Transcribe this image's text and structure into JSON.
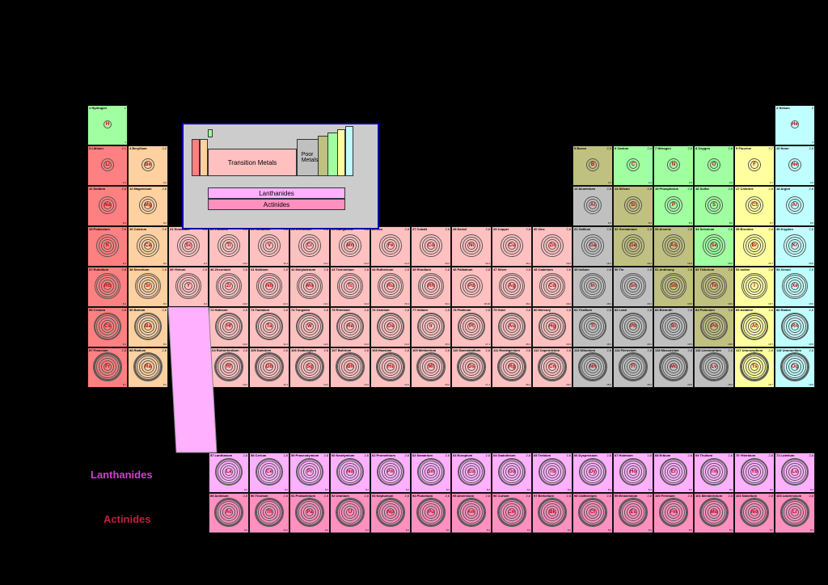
{
  "colors": {
    "alkali": "#ff8080",
    "alkaline": "#ffd0a0",
    "transition": "#ffc0c0",
    "poor": "#c0c0c0",
    "metalloid": "#c0c080",
    "nonmetal": "#a0ffa0",
    "halogen": "#ffffa0",
    "noble": "#c0ffff",
    "lanthanide": "#ffb0ff",
    "actinide": "#ff90c0",
    "legend_bg": "#cccccc",
    "legend_border": "#0000aa",
    "background": "#000000"
  },
  "labels": {
    "lanthanides": "Lanthanides",
    "actinides": "Actinides"
  },
  "legend": {
    "transition": "Transition Metals",
    "poor": "Poor\nMetals",
    "lanthanides": "Lanthanides",
    "actinides": "Actinides"
  },
  "rows": [
    [
      {
        "n": 1,
        "s": "H",
        "name": "Hydrogen",
        "cat": "nonmetal",
        "sh": "1"
      },
      null,
      null,
      null,
      null,
      null,
      null,
      null,
      null,
      null,
      null,
      null,
      null,
      null,
      null,
      null,
      null,
      {
        "n": 2,
        "s": "He",
        "name": "Helium",
        "cat": "noble",
        "sh": "2"
      }
    ],
    [
      {
        "n": 3,
        "s": "Li",
        "name": "Lithium",
        "cat": "alkali",
        "sh": "2,1"
      },
      {
        "n": 4,
        "s": "Be",
        "name": "Beryllium",
        "cat": "alkaline",
        "sh": "2,2"
      },
      null,
      null,
      null,
      null,
      null,
      null,
      null,
      null,
      null,
      null,
      {
        "n": 5,
        "s": "B",
        "name": "Boron",
        "cat": "metalloid",
        "sh": "2,3"
      },
      {
        "n": 6,
        "s": "C",
        "name": "Carbon",
        "cat": "nonmetal",
        "sh": "2,4"
      },
      {
        "n": 7,
        "s": "N",
        "name": "Nitrogen",
        "cat": "nonmetal",
        "sh": "2,5"
      },
      {
        "n": 8,
        "s": "O",
        "name": "Oxygen",
        "cat": "nonmetal",
        "sh": "2,6"
      },
      {
        "n": 9,
        "s": "F",
        "name": "Fluorine",
        "cat": "halogen",
        "sh": "2,7"
      },
      {
        "n": 10,
        "s": "Ne",
        "name": "Neon",
        "cat": "noble",
        "sh": "2,8"
      }
    ],
    [
      {
        "n": 11,
        "s": "Na",
        "name": "Sodium",
        "cat": "alkali",
        "sh": "2,8,1"
      },
      {
        "n": 12,
        "s": "Mg",
        "name": "Magnesium",
        "cat": "alkaline",
        "sh": "2,8,2"
      },
      null,
      null,
      null,
      null,
      null,
      null,
      null,
      null,
      null,
      null,
      {
        "n": 13,
        "s": "Al",
        "name": "Aluminium",
        "cat": "poor",
        "sh": "2,8,3"
      },
      {
        "n": 14,
        "s": "Si",
        "name": "Silicon",
        "cat": "metalloid",
        "sh": "2,8,4"
      },
      {
        "n": 15,
        "s": "P",
        "name": "Phosphorus",
        "cat": "nonmetal",
        "sh": "2,8,5"
      },
      {
        "n": 16,
        "s": "S",
        "name": "Sulfur",
        "cat": "nonmetal",
        "sh": "2,8,6"
      },
      {
        "n": 17,
        "s": "Cl",
        "name": "Chlorine",
        "cat": "halogen",
        "sh": "2,8,7"
      },
      {
        "n": 18,
        "s": "Ar",
        "name": "Argon",
        "cat": "noble",
        "sh": "2,8,8"
      }
    ],
    [
      {
        "n": 19,
        "s": "K",
        "name": "Potassium",
        "cat": "alkali",
        "sh": "2,8,8,1"
      },
      {
        "n": 20,
        "s": "Ca",
        "name": "Calcium",
        "cat": "alkaline",
        "sh": "2,8,8,2"
      },
      {
        "n": 21,
        "s": "Sc",
        "name": "Scandium",
        "cat": "transition",
        "sh": "2,8,9,2"
      },
      {
        "n": 22,
        "s": "Ti",
        "name": "Titanium",
        "cat": "transition",
        "sh": "2,8,10,2"
      },
      {
        "n": 23,
        "s": "V",
        "name": "Vanadium",
        "cat": "transition",
        "sh": "2,8,11,2"
      },
      {
        "n": 24,
        "s": "Cr",
        "name": "Chromium",
        "cat": "transition",
        "sh": "2,8,13,1"
      },
      {
        "n": 25,
        "s": "Mn",
        "name": "Manganese",
        "cat": "transition",
        "sh": "2,8,13,2"
      },
      {
        "n": 26,
        "s": "Fe",
        "name": "Iron",
        "cat": "transition",
        "sh": "2,8,14,2"
      },
      {
        "n": 27,
        "s": "Co",
        "name": "Cobalt",
        "cat": "transition",
        "sh": "2,8,15,2"
      },
      {
        "n": 28,
        "s": "Ni",
        "name": "Nickel",
        "cat": "transition",
        "sh": "2,8,16,2"
      },
      {
        "n": 29,
        "s": "Cu",
        "name": "Copper",
        "cat": "transition",
        "sh": "2,8,18,1"
      },
      {
        "n": 30,
        "s": "Zn",
        "name": "Zinc",
        "cat": "transition",
        "sh": "2,8,18,2"
      },
      {
        "n": 31,
        "s": "Ga",
        "name": "Gallium",
        "cat": "poor",
        "sh": "2,8,18,3"
      },
      {
        "n": 32,
        "s": "Ge",
        "name": "Germanium",
        "cat": "metalloid",
        "sh": "2,8,18,4"
      },
      {
        "n": 33,
        "s": "As",
        "name": "Arsenic",
        "cat": "metalloid",
        "sh": "2,8,18,5"
      },
      {
        "n": 34,
        "s": "Se",
        "name": "Selenium",
        "cat": "nonmetal",
        "sh": "2,8,18,6"
      },
      {
        "n": 35,
        "s": "Br",
        "name": "Bromine",
        "cat": "halogen",
        "sh": "2,8,18,7"
      },
      {
        "n": 36,
        "s": "Kr",
        "name": "Krypton",
        "cat": "noble",
        "sh": "2,8,18,8"
      }
    ],
    [
      {
        "n": 37,
        "s": "Rb",
        "name": "Rubidium",
        "cat": "alkali",
        "sh": "2,8,18,8,1"
      },
      {
        "n": 38,
        "s": "Sr",
        "name": "Strontium",
        "cat": "alkaline",
        "sh": "2,8,18,8,2"
      },
      {
        "n": 39,
        "s": "Y",
        "name": "Yttrium",
        "cat": "transition",
        "sh": "2,8,18,9,2"
      },
      {
        "n": 40,
        "s": "Zr",
        "name": "Zirconium",
        "cat": "transition",
        "sh": "2,8,18,10,2"
      },
      {
        "n": 41,
        "s": "Nb",
        "name": "Niobium",
        "cat": "transition",
        "sh": "2,8,18,12,1"
      },
      {
        "n": 42,
        "s": "Mo",
        "name": "Molybdenum",
        "cat": "transition",
        "sh": "2,8,18,13,1"
      },
      {
        "n": 43,
        "s": "Tc",
        "name": "Technetium",
        "cat": "transition",
        "sh": "2,8,18,13,2"
      },
      {
        "n": 44,
        "s": "Ru",
        "name": "Ruthenium",
        "cat": "transition",
        "sh": "2,8,18,15,1"
      },
      {
        "n": 45,
        "s": "Rh",
        "name": "Rhodium",
        "cat": "transition",
        "sh": "2,8,18,16,1"
      },
      {
        "n": 46,
        "s": "Pd",
        "name": "Palladium",
        "cat": "transition",
        "sh": "2,8,18,18"
      },
      {
        "n": 47,
        "s": "Ag",
        "name": "Silver",
        "cat": "transition",
        "sh": "2,8,18,18,1"
      },
      {
        "n": 48,
        "s": "Cd",
        "name": "Cadmium",
        "cat": "transition",
        "sh": "2,8,18,18,2"
      },
      {
        "n": 49,
        "s": "In",
        "name": "Indium",
        "cat": "poor",
        "sh": "2,8,18,18,3"
      },
      {
        "n": 50,
        "s": "Sn",
        "name": "Tin",
        "cat": "poor",
        "sh": "2,8,18,18,4"
      },
      {
        "n": 51,
        "s": "Sb",
        "name": "Antimony",
        "cat": "metalloid",
        "sh": "2,8,18,18,5"
      },
      {
        "n": 52,
        "s": "Te",
        "name": "Tellurium",
        "cat": "metalloid",
        "sh": "2,8,18,18,6"
      },
      {
        "n": 53,
        "s": "I",
        "name": "Iodine",
        "cat": "halogen",
        "sh": "2,8,18,18,7"
      },
      {
        "n": 54,
        "s": "Xe",
        "name": "Xenon",
        "cat": "noble",
        "sh": "2,8,18,18,8"
      }
    ],
    [
      {
        "n": 55,
        "s": "Cs",
        "name": "Cesium",
        "cat": "alkali",
        "sh": "2,8,18,18,8,1"
      },
      {
        "n": 56,
        "s": "Ba",
        "name": "Barium",
        "cat": "alkaline",
        "sh": "2,8,18,18,8,2"
      },
      null,
      {
        "n": 72,
        "s": "Hf",
        "name": "Hafnium",
        "cat": "transition",
        "sh": "2,8,18,32,10,2"
      },
      {
        "n": 73,
        "s": "Ta",
        "name": "Tantalum",
        "cat": "transition",
        "sh": "2,8,18,32,11,2"
      },
      {
        "n": 74,
        "s": "W",
        "name": "Tungsten",
        "cat": "transition",
        "sh": "2,8,18,32,12,2"
      },
      {
        "n": 75,
        "s": "Re",
        "name": "Rhenium",
        "cat": "transition",
        "sh": "2,8,18,32,13,2"
      },
      {
        "n": 76,
        "s": "Os",
        "name": "Osmium",
        "cat": "transition",
        "sh": "2,8,18,32,14,2"
      },
      {
        "n": 77,
        "s": "Ir",
        "name": "Iridium",
        "cat": "transition",
        "sh": "2,8,18,32,15,2"
      },
      {
        "n": 78,
        "s": "Pt",
        "name": "Platinum",
        "cat": "transition",
        "sh": "2,8,18,32,17,1"
      },
      {
        "n": 79,
        "s": "Au",
        "name": "Gold",
        "cat": "transition",
        "sh": "2,8,18,32,18,1"
      },
      {
        "n": 80,
        "s": "Hg",
        "name": "Mercury",
        "cat": "transition",
        "sh": "2,8,18,32,18,2"
      },
      {
        "n": 81,
        "s": "Tl",
        "name": "Thallium",
        "cat": "poor",
        "sh": "2,8,18,32,18,3"
      },
      {
        "n": 82,
        "s": "Pb",
        "name": "Lead",
        "cat": "poor",
        "sh": "2,8,18,32,18,4"
      },
      {
        "n": 83,
        "s": "Bi",
        "name": "Bismuth",
        "cat": "poor",
        "sh": "2,8,18,32,18,5"
      },
      {
        "n": 84,
        "s": "Po",
        "name": "Polonium",
        "cat": "metalloid",
        "sh": "2,8,18,32,18,6"
      },
      {
        "n": 85,
        "s": "At",
        "name": "Astatine",
        "cat": "halogen",
        "sh": "2,8,18,32,18,7"
      },
      {
        "n": 86,
        "s": "Rn",
        "name": "Radon",
        "cat": "noble",
        "sh": "2,8,18,32,18,8"
      }
    ],
    [
      {
        "n": 87,
        "s": "Fr",
        "name": "Francium",
        "cat": "alkali",
        "sh": "2,8,18,32,18,8,1"
      },
      {
        "n": 88,
        "s": "Ra",
        "name": "Radium",
        "cat": "alkaline",
        "sh": "2,8,18,32,18,8,2"
      },
      null,
      {
        "n": 104,
        "s": "Rf",
        "name": "Rutherfordium",
        "cat": "transition",
        "sh": "2,8,18,32,32,10,2"
      },
      {
        "n": 105,
        "s": "Db",
        "name": "Dubnium",
        "cat": "transition",
        "sh": "2,8,18,32,32,11,2"
      },
      {
        "n": 106,
        "s": "Sg",
        "name": "Seaborgium",
        "cat": "transition",
        "sh": "2,8,18,32,32,12,2"
      },
      {
        "n": 107,
        "s": "Bh",
        "name": "Bohrium",
        "cat": "transition",
        "sh": "2,8,18,32,32,13,2"
      },
      {
        "n": 108,
        "s": "Hs",
        "name": "Hassium",
        "cat": "transition",
        "sh": "2,8,18,32,32,14,2"
      },
      {
        "n": 109,
        "s": "Mt",
        "name": "Meitnerium",
        "cat": "transition",
        "sh": "2,8,18,32,32,15,2"
      },
      {
        "n": 110,
        "s": "Ds",
        "name": "Darmstadtium",
        "cat": "transition",
        "sh": "2,8,18,32,32,17,1"
      },
      {
        "n": 111,
        "s": "Rg",
        "name": "Roentgenium",
        "cat": "transition",
        "sh": "2,8,18,32,32,18,1"
      },
      {
        "n": 112,
        "s": "Cn",
        "name": "Copernicium",
        "cat": "transition",
        "sh": "2,8,18,32,32,18,2"
      },
      {
        "n": 113,
        "s": "Nh",
        "name": "Nihonium",
        "cat": "poor",
        "sh": "2,8,18,32,32,18,3"
      },
      {
        "n": 114,
        "s": "Fl",
        "name": "Flerovium",
        "cat": "poor",
        "sh": "2,8,18,32,32,18,4"
      },
      {
        "n": 115,
        "s": "Mc",
        "name": "Moscovium",
        "cat": "poor",
        "sh": "2,8,18,32,32,18,5"
      },
      {
        "n": 116,
        "s": "Lv",
        "name": "Livermorium",
        "cat": "poor",
        "sh": "2,8,18,32,32,18,6"
      },
      {
        "n": 117,
        "s": "Ts",
        "name": "Ununseptium",
        "cat": "halogen",
        "sh": "2,8,18,32,32,18,7"
      },
      {
        "n": 118,
        "s": "Og",
        "name": "Ununoctium",
        "cat": "noble",
        "sh": "2,8,18,32,32,18,8"
      }
    ]
  ],
  "lanthanides": [
    {
      "n": 57,
      "s": "La",
      "name": "Lanthanum",
      "cat": "lanthanide",
      "sh": "2,8,18,18,9,2"
    },
    {
      "n": 58,
      "s": "Ce",
      "name": "Cerium",
      "cat": "lanthanide",
      "sh": "2,8,18,19,9,2"
    },
    {
      "n": 59,
      "s": "Pr",
      "name": "Praseodymium",
      "cat": "lanthanide",
      "sh": "2,8,18,21,8,2"
    },
    {
      "n": 60,
      "s": "Nd",
      "name": "Neodymium",
      "cat": "lanthanide",
      "sh": "2,8,18,22,8,2"
    },
    {
      "n": 61,
      "s": "Pm",
      "name": "Promethium",
      "cat": "lanthanide",
      "sh": "2,8,18,23,8,2"
    },
    {
      "n": 62,
      "s": "Sm",
      "name": "Samarium",
      "cat": "lanthanide",
      "sh": "2,8,18,24,8,2"
    },
    {
      "n": 63,
      "s": "Eu",
      "name": "Europium",
      "cat": "lanthanide",
      "sh": "2,8,18,25,8,2"
    },
    {
      "n": 64,
      "s": "Gd",
      "name": "Gadolinium",
      "cat": "lanthanide",
      "sh": "2,8,18,25,9,2"
    },
    {
      "n": 65,
      "s": "Tb",
      "name": "Terbium",
      "cat": "lanthanide",
      "sh": "2,8,18,27,8,2"
    },
    {
      "n": 66,
      "s": "Dy",
      "name": "Dysprosium",
      "cat": "lanthanide",
      "sh": "2,8,18,28,8,2"
    },
    {
      "n": 67,
      "s": "Ho",
      "name": "Holmium",
      "cat": "lanthanide",
      "sh": "2,8,18,29,8,2"
    },
    {
      "n": 68,
      "s": "Er",
      "name": "Erbium",
      "cat": "lanthanide",
      "sh": "2,8,18,30,8,2"
    },
    {
      "n": 69,
      "s": "Tm",
      "name": "Thulium",
      "cat": "lanthanide",
      "sh": "2,8,18,31,8,2"
    },
    {
      "n": 70,
      "s": "Yb",
      "name": "Ytterbium",
      "cat": "lanthanide",
      "sh": "2,8,18,32,8,2"
    },
    {
      "n": 71,
      "s": "Lu",
      "name": "Lutetium",
      "cat": "lanthanide",
      "sh": "2,8,18,32,9,2"
    }
  ],
  "actinides": [
    {
      "n": 89,
      "s": "Ac",
      "name": "Actinium",
      "cat": "actinide",
      "sh": "2,8,18,32,18,9,2"
    },
    {
      "n": 90,
      "s": "Th",
      "name": "Thorium",
      "cat": "actinide",
      "sh": "2,8,18,32,18,10,2"
    },
    {
      "n": 91,
      "s": "Pa",
      "name": "Protactinium",
      "cat": "actinide",
      "sh": "2,8,18,32,20,9,2"
    },
    {
      "n": 92,
      "s": "U",
      "name": "Uranium",
      "cat": "actinide",
      "sh": "2,8,18,32,21,9,2"
    },
    {
      "n": 93,
      "s": "Np",
      "name": "Neptunium",
      "cat": "actinide",
      "sh": "2,8,18,32,22,9,2"
    },
    {
      "n": 94,
      "s": "Pu",
      "name": "Plutonium",
      "cat": "actinide",
      "sh": "2,8,18,32,24,8,2"
    },
    {
      "n": 95,
      "s": "Am",
      "name": "Americium",
      "cat": "actinide",
      "sh": "2,8,18,32,25,8,2"
    },
    {
      "n": 96,
      "s": "Cm",
      "name": "Curium",
      "cat": "actinide",
      "sh": "2,8,18,32,25,9,2"
    },
    {
      "n": 97,
      "s": "Bk",
      "name": "Berkelium",
      "cat": "actinide",
      "sh": "2,8,18,32,27,8,2"
    },
    {
      "n": 98,
      "s": "Cf",
      "name": "Californium",
      "cat": "actinide",
      "sh": "2,8,18,32,28,8,2"
    },
    {
      "n": 99,
      "s": "Es",
      "name": "Einsteinium",
      "cat": "actinide",
      "sh": "2,8,18,32,29,8,2"
    },
    {
      "n": 100,
      "s": "Fm",
      "name": "Fermium",
      "cat": "actinide",
      "sh": "2,8,18,32,30,8,2"
    },
    {
      "n": 101,
      "s": "Md",
      "name": "Mendelevium",
      "cat": "actinide",
      "sh": "2,8,18,32,31,8,2"
    },
    {
      "n": 102,
      "s": "No",
      "name": "Nobelium",
      "cat": "actinide",
      "sh": "2,8,18,32,32,8,2"
    },
    {
      "n": 103,
      "s": "Lr",
      "name": "Lawrencium",
      "cat": "actinide",
      "sh": "2,8,18,32,32,8,3"
    }
  ]
}
